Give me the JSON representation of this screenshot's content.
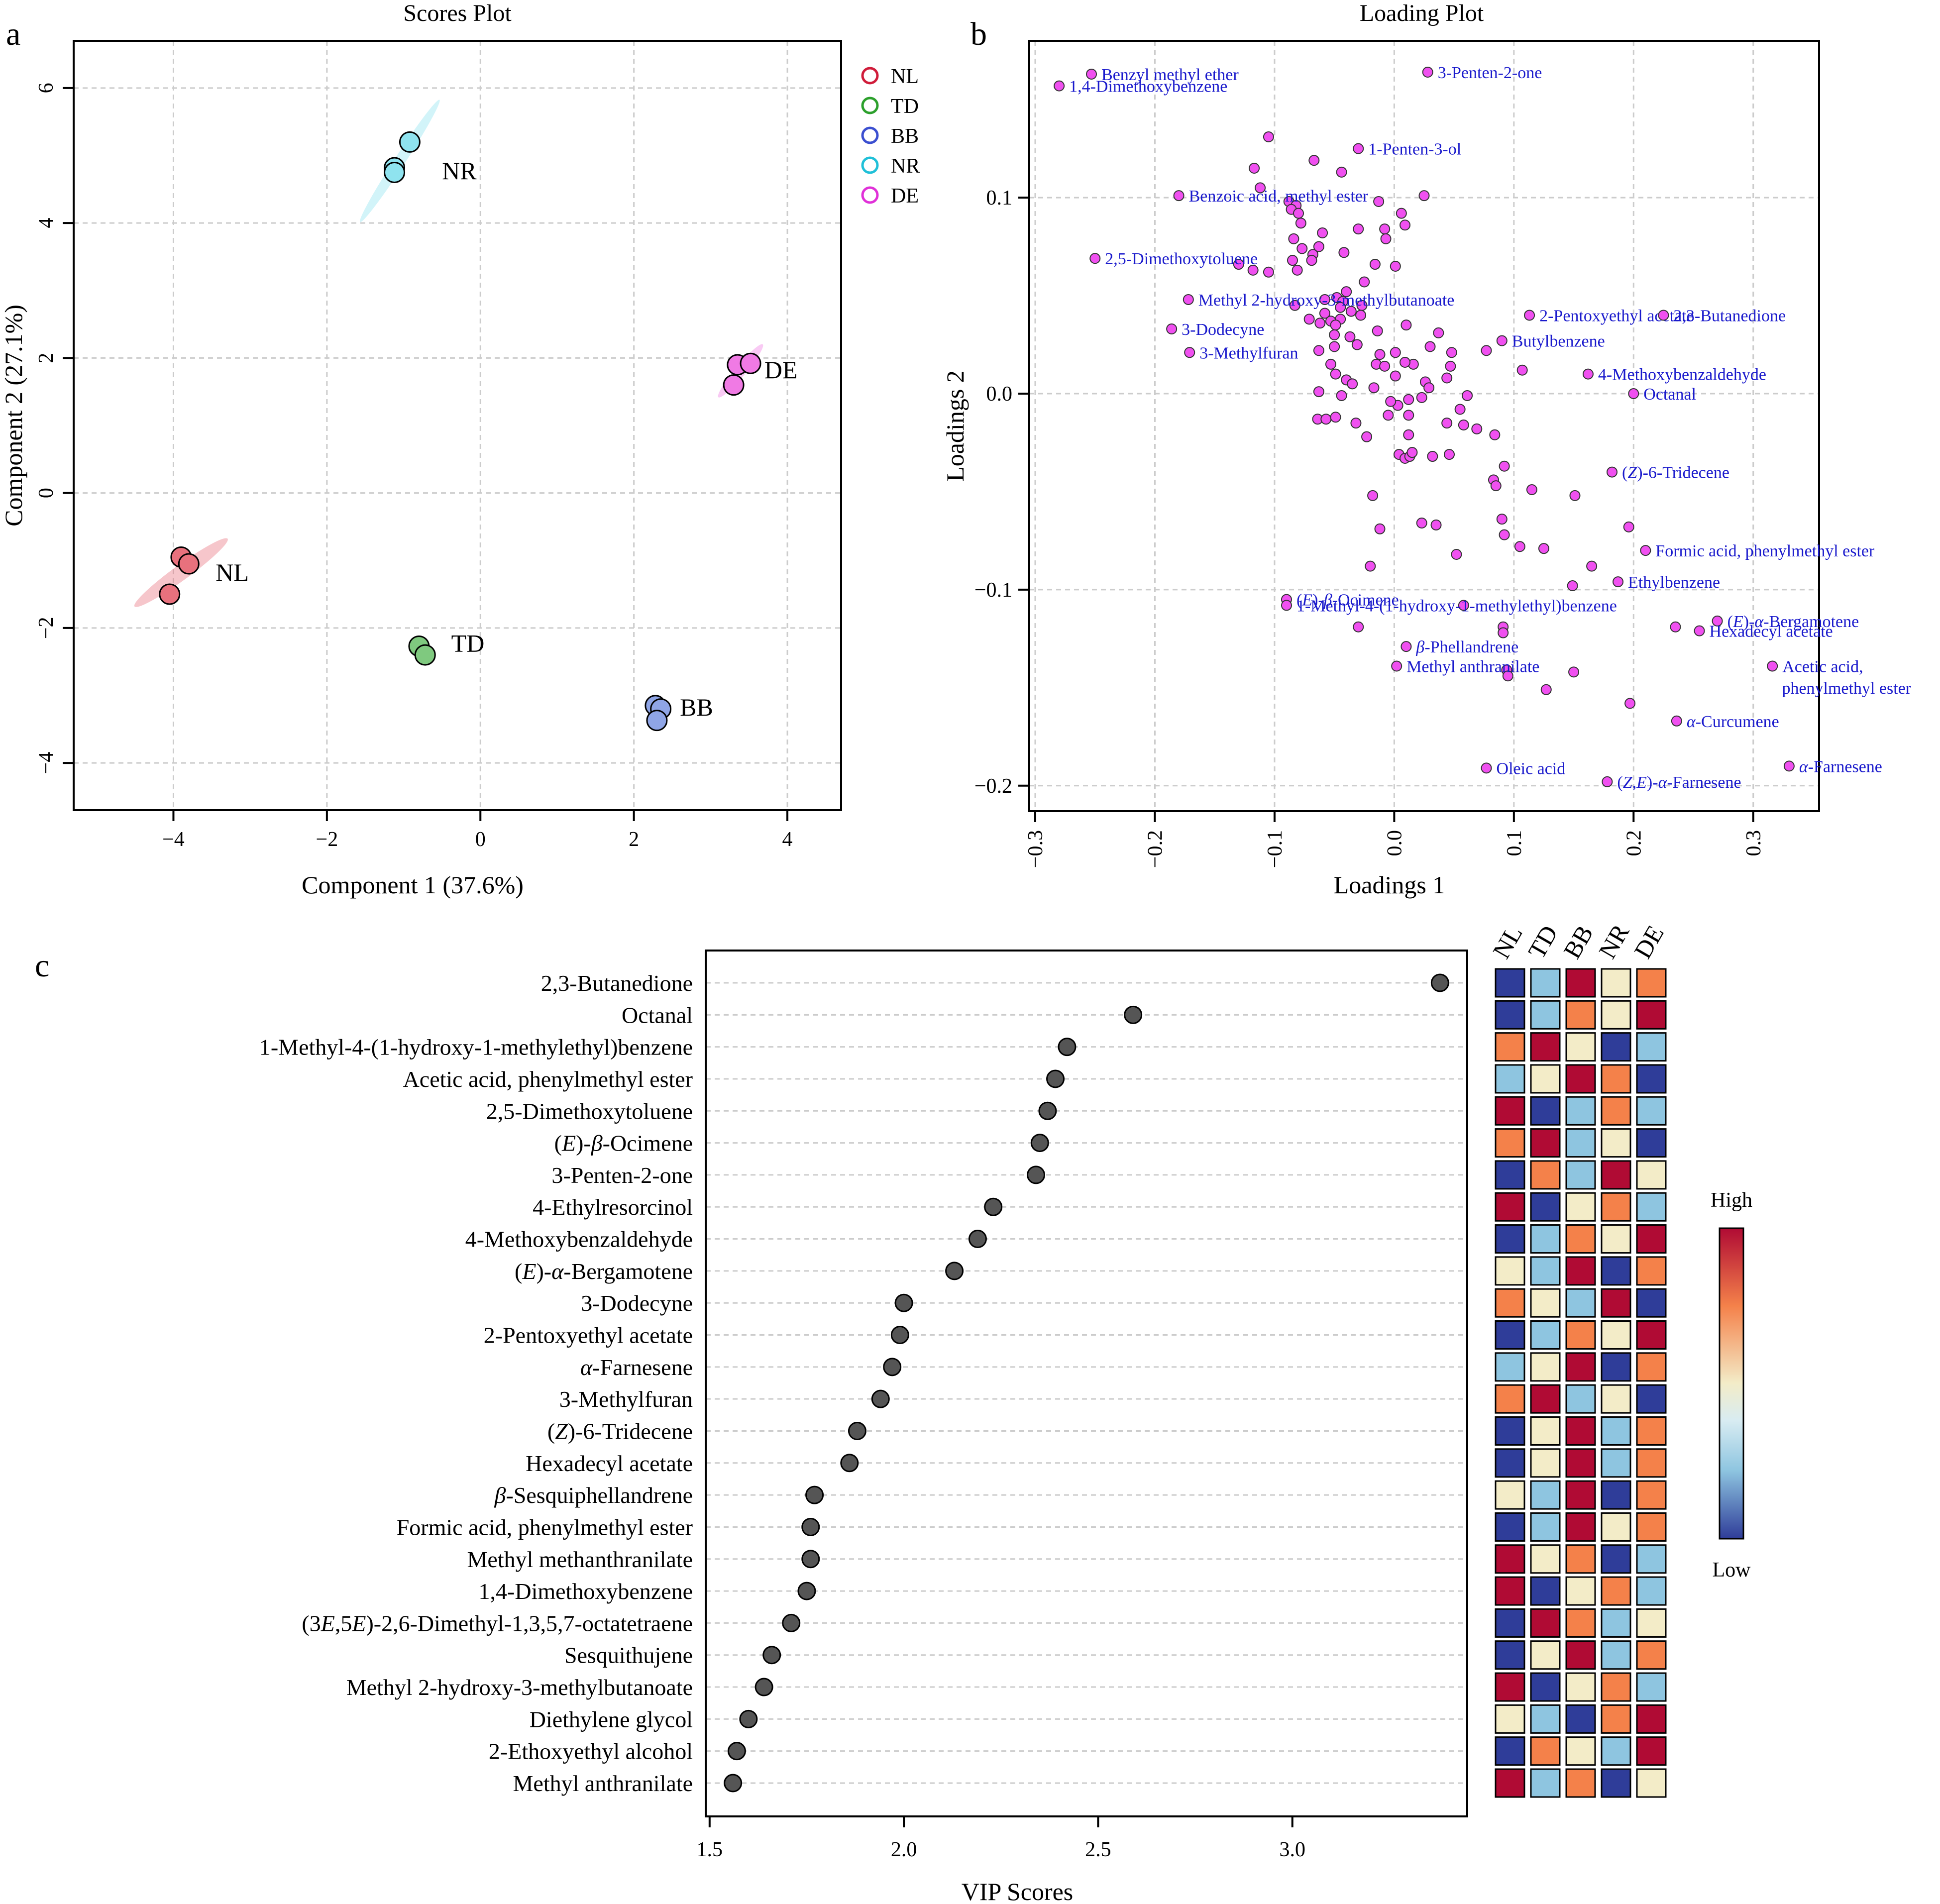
{
  "panel_letters": {
    "a": "a",
    "b": "b",
    "c": "c"
  },
  "colors": {
    "NL": "#e8717d",
    "TD": "#7fc97f",
    "BB": "#8fa5e6",
    "NR": "#8fe3ef",
    "DE": "#f07ae4",
    "legend_NL": "#d01c3a",
    "legend_TD": "#2ca02c",
    "legend_BB": "#3b4fd0",
    "legend_NR": "#20c0d8",
    "legend_DE": "#e030d8",
    "loading_point": "#f050f0",
    "loading_text": "#1a1acc",
    "vip_point": "#555555"
  },
  "legend": {
    "NL": "NL",
    "TD": "TD",
    "BB": "BB",
    "NR": "NR",
    "DE": "DE"
  },
  "heat_legend": {
    "high": "High",
    "low": "Low"
  },
  "chart_data": [
    {
      "id": "scores",
      "type": "scatter",
      "title": "Scores Plot",
      "xlabel": "Component 1 (37.6%)",
      "ylabel": "Component 2 (27.1%)",
      "xlim": [
        -5.3,
        4.7
      ],
      "ylim": [
        -4.7,
        6.7
      ],
      "xticks": [
        -4,
        -2,
        0,
        2,
        4
      ],
      "yticks": [
        -4,
        -2,
        0,
        2,
        4,
        6
      ],
      "xtick_labels": [
        "−4",
        "−2",
        "0",
        "2",
        "4"
      ],
      "ytick_labels": [
        "−4",
        "−2",
        "0",
        "2",
        "4",
        "6"
      ],
      "grid": true,
      "legend_position": "right",
      "groups": [
        {
          "name": "NL",
          "label": "NL",
          "points": [
            [
              -4.05,
              -1.5
            ],
            [
              -3.9,
              -0.95
            ],
            [
              -3.8,
              -1.05
            ]
          ],
          "label_pos": [
            -3.45,
            -1.3
          ],
          "ellipse": {
            "cx": -3.9,
            "cy": -1.18,
            "rx": 0.75,
            "ry": 0.1,
            "angle": 36
          }
        },
        {
          "name": "TD",
          "label": "TD",
          "points": [
            [
              -0.8,
              -2.27
            ],
            [
              -0.72,
              -2.4
            ]
          ],
          "label_pos": [
            -0.38,
            -2.35
          ],
          "ellipse": {
            "cx": -0.76,
            "cy": -2.33,
            "rx": 0.12,
            "ry": 0.06,
            "angle": 45
          }
        },
        {
          "name": "BB",
          "label": "BB",
          "points": [
            [
              2.28,
              -3.15
            ],
            [
              2.35,
              -3.2
            ],
            [
              2.3,
              -3.37
            ]
          ],
          "label_pos": [
            2.6,
            -3.3
          ],
          "ellipse": {
            "cx": 2.31,
            "cy": -3.24,
            "rx": 0.16,
            "ry": 0.08,
            "angle": 60
          }
        },
        {
          "name": "NR",
          "label": "NR",
          "points": [
            [
              -0.92,
              5.2
            ],
            [
              -1.12,
              4.82
            ],
            [
              -1.12,
              4.75
            ]
          ],
          "label_pos": [
            -0.5,
            4.65
          ],
          "ellipse": {
            "cx": -1.05,
            "cy": 4.92,
            "rx": 0.95,
            "ry": 0.07,
            "angle": 57
          }
        },
        {
          "name": "DE",
          "label": "DE",
          "points": [
            [
              3.35,
              1.9
            ],
            [
              3.52,
              1.92
            ],
            [
              3.3,
              1.6
            ]
          ],
          "label_pos": [
            3.7,
            1.7
          ],
          "ellipse": {
            "cx": 3.39,
            "cy": 1.81,
            "rx": 0.45,
            "ry": 0.07,
            "angle": 50
          }
        }
      ]
    },
    {
      "id": "loadings",
      "type": "scatter",
      "title": "Loading Plot",
      "xlabel": "Loadings 1",
      "ylabel": "Loadings 2",
      "xlim": [
        -0.305,
        0.355
      ],
      "ylim": [
        -0.213,
        0.18
      ],
      "xticks": [
        -0.3,
        -0.2,
        -0.1,
        0,
        0.1,
        0.2,
        0.3
      ],
      "yticks": [
        -0.2,
        -0.1,
        0,
        0.1
      ],
      "xtick_labels": [
        "−0.3",
        "−0.2",
        "−0.1",
        "0.0",
        "0.1",
        "0.2",
        "0.3"
      ],
      "ytick_labels": [
        "−0.2",
        "−0.1",
        "0.0",
        "0.1"
      ],
      "grid": true,
      "labeled_points": [
        {
          "x": -0.253,
          "y": 0.163,
          "label": "Benzyl methyl ether"
        },
        {
          "x": -0.28,
          "y": 0.157,
          "label": "1,4-Dimethoxybenzene"
        },
        {
          "x": 0.028,
          "y": 0.164,
          "label": "3-Penten-2-one"
        },
        {
          "x": -0.03,
          "y": 0.125,
          "label": "1-Penten-3-ol"
        },
        {
          "x": -0.18,
          "y": 0.101,
          "label": "Benzoic acid, methyl ester"
        },
        {
          "x": -0.25,
          "y": 0.069,
          "label": "2,5-Dimethoxytoluene"
        },
        {
          "x": -0.172,
          "y": 0.048,
          "label": "Methyl 2-hydroxy-3-methylbutanoate"
        },
        {
          "x": -0.186,
          "y": 0.033,
          "label": "3-Dodecyne"
        },
        {
          "x": -0.171,
          "y": 0.021,
          "label": "3-Methylfuran"
        },
        {
          "x": 0.113,
          "y": 0.04,
          "label": "2-Pentoxyethyl acetate"
        },
        {
          "x": 0.225,
          "y": 0.04,
          "label": "2,3-Butanedione"
        },
        {
          "x": 0.09,
          "y": 0.027,
          "label": "Butylbenzene"
        },
        {
          "x": 0.162,
          "y": 0.01,
          "label": "4-Methoxybenzaldehyde"
        },
        {
          "x": 0.2,
          "y": 0.0,
          "label": "Octanal"
        },
        {
          "x": 0.182,
          "y": -0.04,
          "label": "(Z)-6-Tridecene"
        },
        {
          "x": 0.21,
          "y": -0.08,
          "label": "Formic acid, phenylmethyl ester"
        },
        {
          "x": 0.187,
          "y": -0.096,
          "label": "Ethylbenzene"
        },
        {
          "x": -0.09,
          "y": -0.105,
          "label": "(E)-β-Ocimene"
        },
        {
          "x": -0.09,
          "y": -0.108,
          "label": "1-Methyl-4-(1-hydroxy-1-methylethyl)benzene"
        },
        {
          "x": 0.27,
          "y": -0.116,
          "label": "(E)-α-Bergamotene"
        },
        {
          "x": 0.255,
          "y": -0.121,
          "label": "Hexadecyl acetate"
        },
        {
          "x": 0.01,
          "y": -0.129,
          "label": "β-Phellandrene"
        },
        {
          "x": 0.002,
          "y": -0.139,
          "label": "Methyl anthranilate"
        },
        {
          "x": 0.316,
          "y": -0.139,
          "label": "Acetic acid,"
        },
        {
          "x": 0.236,
          "y": -0.167,
          "label": "α-Curcumene"
        },
        {
          "x": 0.077,
          "y": -0.191,
          "label": "Oleic acid"
        },
        {
          "x": 0.178,
          "y": -0.198,
          "label": "(Z,E)-α-Farnesene"
        },
        {
          "x": 0.33,
          "y": -0.19,
          "label": "α-Farnesene"
        }
      ],
      "extra_labels": [
        {
          "x": 0.324,
          "y": -0.15,
          "label": "phenylmethyl ester"
        }
      ],
      "points": [
        [
          -0.105,
          0.131
        ],
        [
          -0.067,
          0.119
        ],
        [
          -0.117,
          0.115
        ],
        [
          -0.044,
          0.113
        ],
        [
          -0.112,
          0.105
        ],
        [
          -0.088,
          0.098
        ],
        [
          -0.082,
          0.096
        ],
        [
          -0.086,
          0.094
        ],
        [
          -0.08,
          0.092
        ],
        [
          -0.078,
          0.087
        ],
        [
          -0.013,
          0.098
        ],
        [
          0.025,
          0.101
        ],
        [
          0.006,
          0.092
        ],
        [
          0.009,
          0.086
        ],
        [
          -0.008,
          0.084
        ],
        [
          -0.007,
          0.079
        ],
        [
          -0.03,
          0.084
        ],
        [
          -0.06,
          0.082
        ],
        [
          -0.084,
          0.079
        ],
        [
          -0.077,
          0.074
        ],
        [
          -0.063,
          0.075
        ],
        [
          -0.068,
          0.071
        ],
        [
          -0.042,
          0.072
        ],
        [
          -0.085,
          0.068
        ],
        [
          -0.069,
          0.068
        ],
        [
          -0.13,
          0.066
        ],
        [
          -0.118,
          0.063
        ],
        [
          -0.105,
          0.062
        ],
        [
          -0.081,
          0.063
        ],
        [
          -0.016,
          0.066
        ],
        [
          0.001,
          0.065
        ],
        [
          -0.025,
          0.057
        ],
        [
          -0.04,
          0.052
        ],
        [
          -0.048,
          0.049
        ],
        [
          -0.058,
          0.048
        ],
        [
          -0.043,
          0.047
        ],
        [
          -0.045,
          0.044
        ],
        [
          -0.027,
          0.045
        ],
        [
          -0.036,
          0.042
        ],
        [
          -0.045,
          0.038
        ],
        [
          -0.058,
          0.041
        ],
        [
          -0.053,
          0.037
        ],
        [
          -0.083,
          0.045
        ],
        [
          -0.071,
          0.038
        ],
        [
          -0.062,
          0.036
        ],
        [
          -0.049,
          0.035
        ],
        [
          -0.028,
          0.04
        ],
        [
          -0.05,
          0.03
        ],
        [
          -0.037,
          0.029
        ],
        [
          -0.014,
          0.032
        ],
        [
          0.01,
          0.035
        ],
        [
          0.037,
          0.031
        ],
        [
          -0.05,
          0.024
        ],
        [
          -0.063,
          0.022
        ],
        [
          -0.031,
          0.025
        ],
        [
          -0.012,
          0.02
        ],
        [
          0.001,
          0.021
        ],
        [
          0.03,
          0.024
        ],
        [
          0.048,
          0.021
        ],
        [
          -0.053,
          0.015
        ],
        [
          -0.015,
          0.015
        ],
        [
          -0.008,
          0.014
        ],
        [
          0.016,
          0.015
        ],
        [
          0.009,
          0.016
        ],
        [
          0.047,
          0.014
        ],
        [
          0.107,
          0.012
        ],
        [
          0.077,
          0.022
        ],
        [
          -0.04,
          0.007
        ],
        [
          -0.049,
          0.01
        ],
        [
          -0.035,
          0.005
        ],
        [
          -0.063,
          0.001
        ],
        [
          -0.044,
          -0.001
        ],
        [
          -0.017,
          0.003
        ],
        [
          0.001,
          0.009
        ],
        [
          0.026,
          0.006
        ],
        [
          0.044,
          0.008
        ],
        [
          0.029,
          0.003
        ],
        [
          0.023,
          -0.002
        ],
        [
          0.012,
          -0.003
        ],
        [
          0.061,
          -0.001
        ],
        [
          0.003,
          -0.006
        ],
        [
          -0.003,
          -0.004
        ],
        [
          0.055,
          -0.008
        ],
        [
          -0.064,
          -0.013
        ],
        [
          -0.057,
          -0.013
        ],
        [
          -0.049,
          -0.012
        ],
        [
          -0.032,
          -0.015
        ],
        [
          -0.005,
          -0.011
        ],
        [
          0.012,
          -0.011
        ],
        [
          0.044,
          -0.015
        ],
        [
          -0.023,
          -0.022
        ],
        [
          0.012,
          -0.021
        ],
        [
          0.058,
          -0.016
        ],
        [
          0.069,
          -0.018
        ],
        [
          0.084,
          -0.021
        ],
        [
          0.004,
          -0.031
        ],
        [
          0.009,
          -0.033
        ],
        [
          0.013,
          -0.032
        ],
        [
          0.015,
          -0.03
        ],
        [
          0.032,
          -0.032
        ],
        [
          0.046,
          -0.031
        ],
        [
          0.083,
          -0.044
        ],
        [
          0.085,
          -0.047
        ],
        [
          0.092,
          -0.037
        ],
        [
          0.115,
          -0.049
        ],
        [
          0.151,
          -0.052
        ],
        [
          -0.018,
          -0.052
        ],
        [
          0.023,
          -0.066
        ],
        [
          -0.012,
          -0.069
        ],
        [
          0.035,
          -0.067
        ],
        [
          0.09,
          -0.064
        ],
        [
          0.196,
          -0.068
        ],
        [
          -0.02,
          -0.088
        ],
        [
          0.052,
          -0.082
        ],
        [
          0.092,
          -0.072
        ],
        [
          0.105,
          -0.078
        ],
        [
          0.125,
          -0.079
        ],
        [
          0.165,
          -0.088
        ],
        [
          0.149,
          -0.098
        ],
        [
          -0.03,
          -0.119
        ],
        [
          0.058,
          -0.108
        ],
        [
          0.091,
          -0.119
        ],
        [
          0.091,
          -0.122
        ],
        [
          0.15,
          -0.142
        ],
        [
          0.127,
          -0.151
        ],
        [
          0.197,
          -0.158
        ],
        [
          0.235,
          -0.119
        ],
        [
          0.094,
          -0.141
        ],
        [
          0.095,
          -0.144
        ]
      ]
    },
    {
      "id": "vip",
      "type": "scatter",
      "xlabel": "VIP Scores",
      "xlim": [
        1.49,
        3.45
      ],
      "xticks": [
        1.5,
        2.0,
        2.5,
        3.0
      ],
      "xtick_labels": [
        "1.5",
        "2.0",
        "2.5",
        "3.0"
      ],
      "grid": true,
      "categories": [
        "2,3-Butanedione",
        "Octanal",
        "1-Methyl-4-(1-hydroxy-1-methylethyl)benzene",
        "Acetic acid, phenylmethyl ester",
        "2,5-Dimethoxytoluene",
        "(E)-β-Ocimene",
        "3-Penten-2-one",
        "4-Ethylresorcinol",
        "4-Methoxybenzaldehyde",
        "(E)-α-Bergamotene",
        "3-Dodecyne",
        "2-Pentoxyethyl acetate",
        "α-Farnesene",
        "3-Methylfuran",
        "(Z)-6-Tridecene",
        "Hexadecyl acetate",
        "β-Sesquiphellandrene",
        "Formic acid, phenylmethyl ester",
        "Methyl methanthranilate",
        "1,4-Dimethoxybenzene",
        "(3E,5E)-2,6-Dimethyl-1,3,5,7-octatetraene",
        "Sesquithujene",
        "Methyl 2-hydroxy-3-methylbutanoate",
        "Diethylene glycol",
        "2-Ethoxyethyl alcohol",
        "Methyl anthranilate"
      ],
      "values": [
        3.38,
        2.59,
        2.42,
        2.39,
        2.37,
        2.35,
        2.34,
        2.23,
        2.19,
        2.13,
        2.0,
        1.99,
        1.97,
        1.94,
        1.88,
        1.86,
        1.77,
        1.76,
        1.76,
        1.75,
        1.71,
        1.66,
        1.64,
        1.6,
        1.57,
        1.56
      ]
    },
    {
      "id": "heatmap",
      "type": "heatmap",
      "columns": [
        "NL",
        "TD",
        "BB",
        "NR",
        "DE"
      ],
      "levels": {
        "1": "#2f3d99",
        "2": "#8ec5e0",
        "3": "#f3ecc8",
        "4": "#f4814a",
        "5": "#b00b34"
      },
      "rows": [
        [
          1,
          2,
          5,
          3,
          4
        ],
        [
          1,
          2,
          4,
          3,
          5
        ],
        [
          4,
          5,
          3,
          1,
          2
        ],
        [
          2,
          3,
          5,
          4,
          1
        ],
        [
          5,
          1,
          2,
          4,
          2
        ],
        [
          4,
          5,
          2,
          3,
          1
        ],
        [
          1,
          4,
          2,
          5,
          3
        ],
        [
          5,
          1,
          3,
          4,
          2
        ],
        [
          1,
          2,
          4,
          3,
          5
        ],
        [
          3,
          2,
          5,
          1,
          4
        ],
        [
          4,
          3,
          2,
          5,
          1
        ],
        [
          1,
          2,
          4,
          3,
          5
        ],
        [
          2,
          3,
          5,
          1,
          4
        ],
        [
          4,
          5,
          2,
          3,
          1
        ],
        [
          1,
          3,
          5,
          2,
          4
        ],
        [
          1,
          3,
          5,
          2,
          4
        ],
        [
          3,
          2,
          5,
          1,
          4
        ],
        [
          1,
          2,
          5,
          3,
          4
        ],
        [
          5,
          3,
          4,
          1,
          2
        ],
        [
          5,
          1,
          3,
          4,
          2
        ],
        [
          1,
          5,
          4,
          2,
          3
        ],
        [
          1,
          3,
          5,
          2,
          4
        ],
        [
          5,
          1,
          3,
          4,
          2
        ],
        [
          3,
          2,
          1,
          4,
          5
        ],
        [
          1,
          4,
          3,
          2,
          5
        ],
        [
          5,
          2,
          4,
          1,
          3
        ]
      ]
    }
  ]
}
